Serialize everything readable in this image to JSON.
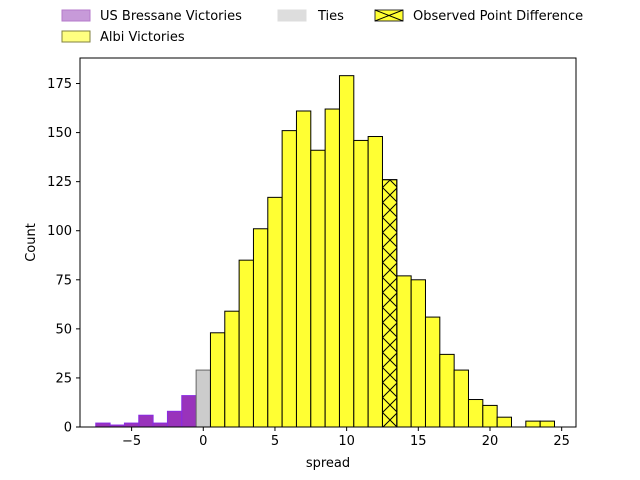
{
  "chart_data": {
    "type": "bar",
    "title": "",
    "xlabel": "spread",
    "ylabel": "Count",
    "xlim": [
      -8.6,
      26.0
    ],
    "ylim": [
      0,
      188
    ],
    "xticks": [
      -5,
      0,
      5,
      10,
      15,
      20,
      25
    ],
    "yticks": [
      0,
      25,
      50,
      75,
      100,
      125,
      150,
      175
    ],
    "bin_width": 1,
    "grid": false,
    "legend": {
      "placement": "above-top",
      "entries": [
        {
          "label": "US Bressane Victories",
          "kind": "patch",
          "color": "#9b30b8",
          "alpha": 0.5
        },
        {
          "label": "Albi Victories",
          "kind": "patch",
          "color": "#ffff00",
          "alpha": 0.55
        },
        {
          "label": "Ties",
          "kind": "patch",
          "color": "#cccccc",
          "alpha": 0.7
        },
        {
          "label": "Observed Point Difference",
          "kind": "hatched",
          "color": "#ffff33"
        }
      ]
    },
    "series": [
      {
        "name": "US Bressane Victories",
        "color": "#9933bb",
        "edge": "#8a2be2",
        "bins": [
          {
            "x0": -7.5,
            "count": 2
          },
          {
            "x0": -6.5,
            "count": 1
          },
          {
            "x0": -5.5,
            "count": 2
          },
          {
            "x0": -4.5,
            "count": 6
          },
          {
            "x0": -3.5,
            "count": 2
          },
          {
            "x0": -2.5,
            "count": 8
          },
          {
            "x0": -1.5,
            "count": 16
          }
        ]
      },
      {
        "name": "Ties",
        "color": "#cccccc",
        "edge": "#666666",
        "bins": [
          {
            "x0": -0.5,
            "count": 29
          }
        ]
      },
      {
        "name": "Albi Victories",
        "color": "#ffff33",
        "edge": "#000000",
        "bins": [
          {
            "x0": 0.5,
            "count": 48
          },
          {
            "x0": 1.5,
            "count": 59
          },
          {
            "x0": 2.5,
            "count": 85
          },
          {
            "x0": 3.5,
            "count": 101
          },
          {
            "x0": 4.5,
            "count": 117
          },
          {
            "x0": 5.5,
            "count": 151
          },
          {
            "x0": 6.5,
            "count": 161
          },
          {
            "x0": 7.5,
            "count": 141
          },
          {
            "x0": 8.5,
            "count": 162
          },
          {
            "x0": 9.5,
            "count": 179
          },
          {
            "x0": 10.5,
            "count": 146
          },
          {
            "x0": 11.5,
            "count": 148
          },
          {
            "x0": 13.5,
            "count": 77
          },
          {
            "x0": 14.5,
            "count": 75
          },
          {
            "x0": 15.5,
            "count": 56
          },
          {
            "x0": 16.5,
            "count": 37
          },
          {
            "x0": 17.5,
            "count": 29
          },
          {
            "x0": 18.5,
            "count": 14
          },
          {
            "x0": 19.5,
            "count": 11
          },
          {
            "x0": 20.5,
            "count": 5
          },
          {
            "x0": 22.5,
            "count": 3
          },
          {
            "x0": 23.5,
            "count": 3
          }
        ]
      },
      {
        "name": "Observed Point Difference",
        "color": "#ffff33",
        "edge": "#000000",
        "hatched": true,
        "bins": [
          {
            "x0": 12.5,
            "count": 126
          }
        ]
      }
    ]
  }
}
